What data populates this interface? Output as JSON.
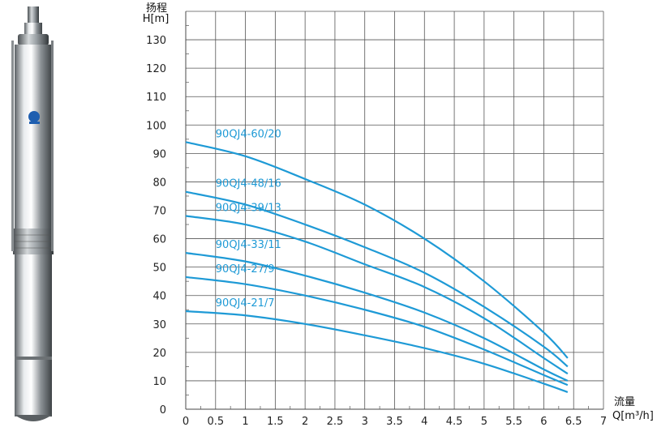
{
  "chart_data": {
    "type": "line",
    "ylabel_top": "扬程",
    "ylabel": "H[m]",
    "xlabel_top": "流量",
    "xlabel": "Q[m³/h]",
    "xlim": [
      0,
      7
    ],
    "ylim": [
      0,
      140
    ],
    "x_ticks": [
      "0",
      "0.5",
      "1",
      "1.5",
      "2",
      "2.5",
      "3",
      "3.5",
      "4",
      "4.5",
      "5",
      "5.5",
      "6",
      "6.5",
      "7"
    ],
    "y_ticks": [
      "0",
      "10",
      "20",
      "30",
      "40",
      "50",
      "60",
      "70",
      "80",
      "90",
      "100",
      "110",
      "120",
      "130"
    ],
    "grid": true,
    "series_color": "#1e9ad6",
    "series": [
      {
        "name": "90QJ4-60/20",
        "x": [
          0,
          1,
          2,
          3,
          4,
          5,
          6,
          6.4
        ],
        "y": [
          94,
          89,
          81,
          72,
          60,
          45,
          27,
          18
        ]
      },
      {
        "name": "90QJ4-48/16",
        "x": [
          0,
          1,
          2,
          3,
          4,
          5,
          6,
          6.4
        ],
        "y": [
          76.5,
          72,
          65,
          57,
          48,
          36,
          22,
          15
        ]
      },
      {
        "name": "90QJ4-39/13",
        "x": [
          0,
          1,
          2,
          3,
          4,
          5,
          6,
          6.4
        ],
        "y": [
          68,
          65,
          59,
          51,
          43,
          32,
          18,
          12.5
        ]
      },
      {
        "name": "90QJ4-33/11",
        "x": [
          0,
          1,
          2,
          3,
          4,
          5,
          6,
          6.4
        ],
        "y": [
          55,
          52,
          47,
          41,
          34,
          25,
          14,
          10
        ]
      },
      {
        "name": "90QJ4-27/9",
        "x": [
          0,
          1,
          2,
          3,
          4,
          5,
          6,
          6.4
        ],
        "y": [
          46.5,
          44,
          40,
          35,
          29,
          21,
          12,
          8.5
        ]
      },
      {
        "name": "90QJ4-21/7",
        "x": [
          0,
          1,
          2,
          3,
          4,
          5,
          6,
          6.4
        ],
        "y": [
          34.5,
          33,
          30,
          26,
          21.5,
          16,
          9,
          6
        ]
      }
    ]
  }
}
